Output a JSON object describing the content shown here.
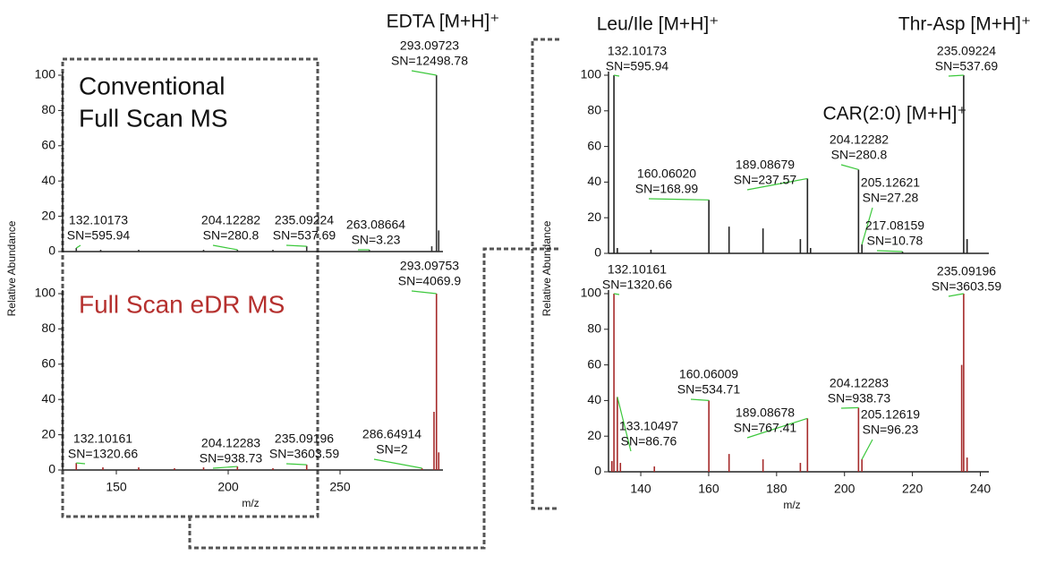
{
  "chart_data": [
    {
      "type": "stick",
      "color": "#333333",
      "xlim": [
        126,
        296
      ],
      "ylim": [
        0,
        100
      ],
      "yticks": [
        0,
        20,
        40,
        60,
        80,
        100
      ],
      "ylabel": "Relative Abundance",
      "inset_text": [
        "Conventional",
        "Full Scan MS"
      ],
      "headlines": [
        "EDTA [M+H]⁺"
      ],
      "peaks": [
        {
          "x": 132.10173,
          "y": 2,
          "label": "132.10173",
          "sn": "SN=595.94"
        },
        {
          "x": 143,
          "y": 1
        },
        {
          "x": 160,
          "y": 1
        },
        {
          "x": 189,
          "y": 1
        },
        {
          "x": 204.12282,
          "y": 1,
          "label": "204.12282",
          "sn": "SN=280.8"
        },
        {
          "x": 220,
          "y": 1
        },
        {
          "x": 235.09224,
          "y": 3,
          "label": "235.09224",
          "sn": "SN=537.69"
        },
        {
          "x": 263.08664,
          "y": 1,
          "label": "263.08664",
          "sn": "SN=3.23"
        },
        {
          "x": 291,
          "y": 3
        },
        {
          "x": 293.09723,
          "y": 100,
          "label": "293.09723",
          "sn": "SN=12498.78"
        },
        {
          "x": 294.1,
          "y": 12
        }
      ]
    },
    {
      "type": "stick",
      "color": "#a52a2a",
      "xlim": [
        126,
        296
      ],
      "ylim": [
        0,
        100
      ],
      "yticks": [
        0,
        20,
        40,
        60,
        80,
        100
      ],
      "xticks": [
        150,
        200,
        250
      ],
      "xlabel": "m/z",
      "inset_text": [
        "Full Scan eDR MS"
      ],
      "inset_color": "#b5302e",
      "peaks": [
        {
          "x": 132.10161,
          "y": 4,
          "label": "132.10161",
          "sn": "SN=1320.66"
        },
        {
          "x": 144,
          "y": 1.5
        },
        {
          "x": 160,
          "y": 1.5
        },
        {
          "x": 176,
          "y": 1
        },
        {
          "x": 189,
          "y": 1.5
        },
        {
          "x": 204.12283,
          "y": 2,
          "label": "204.12283",
          "sn": "SN=938.73"
        },
        {
          "x": 220,
          "y": 1
        },
        {
          "x": 235.09196,
          "y": 3,
          "label": "235.09196",
          "sn": "SN=3603.59"
        },
        {
          "x": 286.64914,
          "y": 1,
          "label": "286.64914",
          "sn": "SN=2"
        },
        {
          "x": 292,
          "y": 33
        },
        {
          "x": 293.09753,
          "y": 100,
          "label": "293.09753",
          "sn": "SN=4069.9"
        },
        {
          "x": 294.1,
          "y": 10
        }
      ]
    },
    {
      "type": "stick",
      "color": "#222222",
      "xlim": [
        130.5,
        242.5
      ],
      "ylim": [
        0,
        100
      ],
      "yticks": [
        0,
        20,
        40,
        60,
        80,
        100
      ],
      "ylabel": "Relative Abundance",
      "headlines": [
        "Leu/Ile [M+H]⁺",
        "Thr-Asp [M+H]⁺",
        "CAR(2:0) [M+H]⁺"
      ],
      "peaks": [
        {
          "x": 132.10173,
          "y": 100,
          "label": "132.10173",
          "sn": "SN=595.94"
        },
        {
          "x": 133.1,
          "y": 3
        },
        {
          "x": 143,
          "y": 2
        },
        {
          "x": 160.0602,
          "y": 30,
          "label": "160.06020",
          "sn": "SN=168.99"
        },
        {
          "x": 166,
          "y": 15
        },
        {
          "x": 176,
          "y": 14
        },
        {
          "x": 187,
          "y": 8
        },
        {
          "x": 189.08679,
          "y": 42,
          "label": "189.08679",
          "sn": "SN=237.57"
        },
        {
          "x": 190,
          "y": 3
        },
        {
          "x": 204.12282,
          "y": 47,
          "label": "204.12282",
          "sn": "SN=280.8"
        },
        {
          "x": 205.12621,
          "y": 5,
          "label": "205.12621",
          "sn": "SN=27.28"
        },
        {
          "x": 217.08159,
          "y": 1,
          "label": "217.08159",
          "sn": "SN=10.78"
        },
        {
          "x": 235.09224,
          "y": 100,
          "label": "235.09224",
          "sn": "SN=537.69"
        },
        {
          "x": 236.1,
          "y": 8
        }
      ]
    },
    {
      "type": "stick",
      "color": "#a52a2a",
      "xlim": [
        130.5,
        242.5
      ],
      "ylim": [
        0,
        100
      ],
      "yticks": [
        0,
        20,
        40,
        60,
        80,
        100
      ],
      "xticks": [
        140,
        160,
        180,
        200,
        220,
        240
      ],
      "xlabel": "m/z",
      "peaks": [
        {
          "x": 131.5,
          "y": 6
        },
        {
          "x": 132.10161,
          "y": 100,
          "label": "132.10161",
          "sn": "SN=1320.66"
        },
        {
          "x": 133.10497,
          "y": 42,
          "label": "133.10497",
          "sn": "SN=86.76"
        },
        {
          "x": 134,
          "y": 5
        },
        {
          "x": 144,
          "y": 3
        },
        {
          "x": 160.06009,
          "y": 40,
          "label": "160.06009",
          "sn": "SN=534.71"
        },
        {
          "x": 166,
          "y": 10
        },
        {
          "x": 176,
          "y": 7
        },
        {
          "x": 187,
          "y": 5
        },
        {
          "x": 189.08678,
          "y": 30,
          "label": "189.08678",
          "sn": "SN=767.41"
        },
        {
          "x": 204.12283,
          "y": 36,
          "label": "204.12283",
          "sn": "SN=938.73"
        },
        {
          "x": 205.12619,
          "y": 7,
          "label": "205.12619",
          "sn": "SN=96.23"
        },
        {
          "x": 234.5,
          "y": 60
        },
        {
          "x": 235.09196,
          "y": 100,
          "label": "235.09196",
          "sn": "SN=3603.59"
        },
        {
          "x": 236.1,
          "y": 8
        }
      ]
    }
  ]
}
